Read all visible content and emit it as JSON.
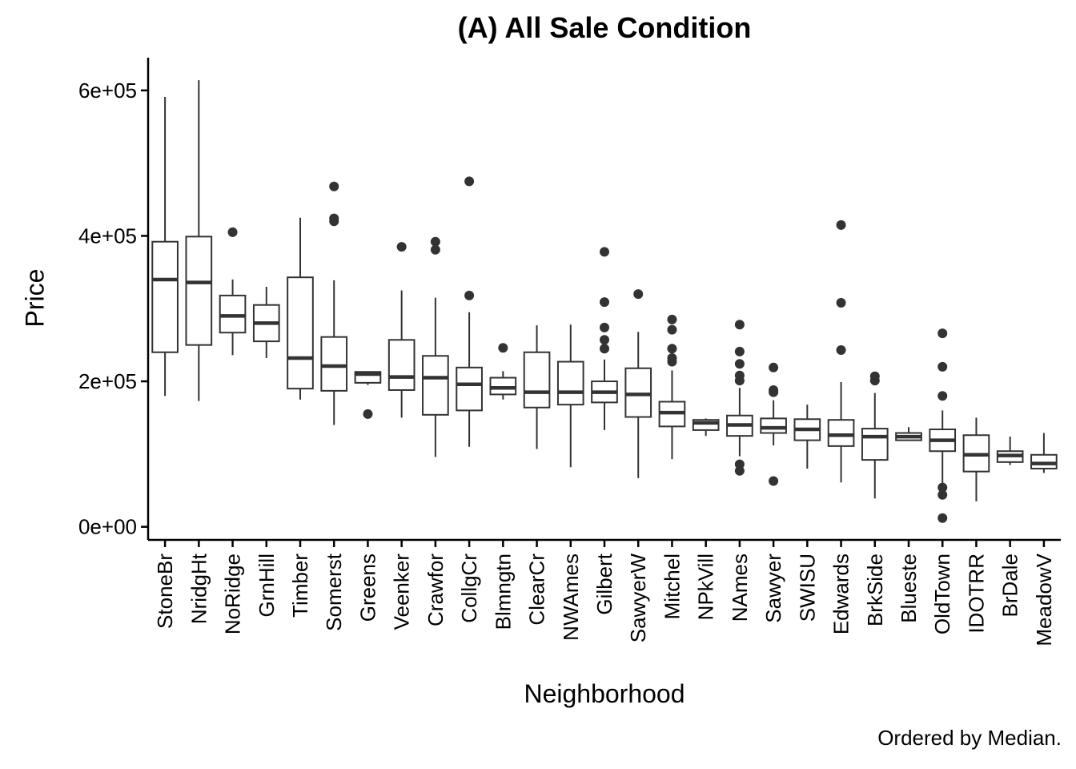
{
  "chart_data": {
    "type": "boxplot",
    "title": "(A) All Sale Condition",
    "xlabel": "Neighborhood",
    "ylabel": "Price",
    "caption": "Ordered by Median.",
    "ylim": [
      -18000,
      645000
    ],
    "yticks": [
      0,
      200000,
      400000,
      600000
    ],
    "ytick_labels": [
      "0e+00",
      "2e+05",
      "4e+05",
      "6e+05"
    ],
    "grid": false,
    "legend": "none",
    "colors": {
      "box_stroke": "#333333",
      "box_fill": "#ffffff",
      "outlier": "#333333",
      "axis": "#000000"
    },
    "categories": [
      "StoneBr",
      "NridgHt",
      "NoRidge",
      "GrnHill",
      "Timber",
      "Somerst",
      "Greens",
      "Veenker",
      "Crawfor",
      "CollgCr",
      "Blmngtn",
      "ClearCr",
      "NWAmes",
      "Gilbert",
      "SawyerW",
      "Mitchel",
      "NPkVill",
      "NAmes",
      "Sawyer",
      "SWISU",
      "Edwards",
      "BrkSide",
      "Blueste",
      "OldTown",
      "IDOTRR",
      "BrDale",
      "MeadowV"
    ],
    "boxes": [
      {
        "low": 180000,
        "q1": 240000,
        "median": 340000,
        "q3": 392000,
        "high": 591000,
        "outliers": []
      },
      {
        "low": 173000,
        "q1": 250000,
        "median": 336000,
        "q3": 399000,
        "high": 614000,
        "outliers": []
      },
      {
        "low": 236000,
        "q1": 267000,
        "median": 290000,
        "q3": 318000,
        "high": 340000,
        "outliers": [
          405000
        ]
      },
      {
        "low": 232000,
        "q1": 255000,
        "median": 280000,
        "q3": 305000,
        "high": 330000,
        "outliers": []
      },
      {
        "low": 175000,
        "q1": 190000,
        "median": 232000,
        "q3": 343000,
        "high": 425000,
        "outliers": []
      },
      {
        "low": 140000,
        "q1": 187000,
        "median": 221000,
        "q3": 261000,
        "high": 339000,
        "outliers": [
          420000,
          424000,
          468000
        ]
      },
      {
        "low": 195000,
        "q1": 198000,
        "median": 210000,
        "q3": 213000,
        "high": 214000,
        "outliers": [
          155000
        ]
      },
      {
        "low": 150000,
        "q1": 188000,
        "median": 206000,
        "q3": 257000,
        "high": 325000,
        "outliers": [
          385000
        ]
      },
      {
        "low": 96000,
        "q1": 154000,
        "median": 205000,
        "q3": 235000,
        "high": 315000,
        "outliers": [
          381000,
          392000
        ]
      },
      {
        "low": 110000,
        "q1": 160000,
        "median": 196000,
        "q3": 219000,
        "high": 295000,
        "outliers": [
          318000,
          475000
        ]
      },
      {
        "low": 175000,
        "q1": 182000,
        "median": 191000,
        "q3": 205000,
        "high": 214000,
        "outliers": [
          246000
        ]
      },
      {
        "low": 107000,
        "q1": 164000,
        "median": 185000,
        "q3": 240000,
        "high": 277000,
        "outliers": []
      },
      {
        "low": 82000,
        "q1": 168000,
        "median": 185000,
        "q3": 227000,
        "high": 278000,
        "outliers": []
      },
      {
        "low": 133000,
        "q1": 171000,
        "median": 185000,
        "q3": 200000,
        "high": 230000,
        "outliers": [
          245000,
          257000,
          274000,
          309000,
          378000
        ]
      },
      {
        "low": 67000,
        "q1": 151000,
        "median": 182000,
        "q3": 218000,
        "high": 268000,
        "outliers": [
          320000
        ]
      },
      {
        "low": 93000,
        "q1": 138000,
        "median": 157000,
        "q3": 172000,
        "high": 215000,
        "outliers": [
          227000,
          232000,
          245000,
          271000,
          285000
        ]
      },
      {
        "low": 125000,
        "q1": 133000,
        "median": 143000,
        "q3": 147000,
        "high": 149000,
        "outliers": []
      },
      {
        "low": 97000,
        "q1": 125000,
        "median": 140000,
        "q3": 153000,
        "high": 191000,
        "outliers": [
          77000,
          86000,
          201000,
          208000,
          224000,
          241000,
          278000
        ]
      },
      {
        "low": 112000,
        "q1": 129000,
        "median": 136000,
        "q3": 149000,
        "high": 174000,
        "outliers": [
          63000,
          185000,
          188000,
          219000
        ]
      },
      {
        "low": 80000,
        "q1": 119000,
        "median": 134000,
        "q3": 148000,
        "high": 168000,
        "outliers": []
      },
      {
        "low": 61000,
        "q1": 111000,
        "median": 126000,
        "q3": 147000,
        "high": 199000,
        "outliers": [
          243000,
          308000,
          415000
        ]
      },
      {
        "low": 39000,
        "q1": 92000,
        "median": 124000,
        "q3": 135000,
        "high": 184000,
        "outliers": [
          201000,
          207000
        ]
      },
      {
        "low": 118000,
        "q1": 119000,
        "median": 124000,
        "q3": 129000,
        "high": 137000,
        "outliers": []
      },
      {
        "low": 60000,
        "q1": 104000,
        "median": 119000,
        "q3": 134000,
        "high": 160000,
        "outliers": [
          12000,
          44000,
          54000,
          180000,
          220000,
          266000
        ]
      },
      {
        "low": 35000,
        "q1": 76000,
        "median": 99000,
        "q3": 126000,
        "high": 150000,
        "outliers": []
      },
      {
        "low": 85000,
        "q1": 89000,
        "median": 98000,
        "q3": 104000,
        "high": 124000,
        "outliers": []
      },
      {
        "low": 74000,
        "q1": 80000,
        "median": 87000,
        "q3": 99000,
        "high": 129000,
        "outliers": []
      }
    ]
  }
}
